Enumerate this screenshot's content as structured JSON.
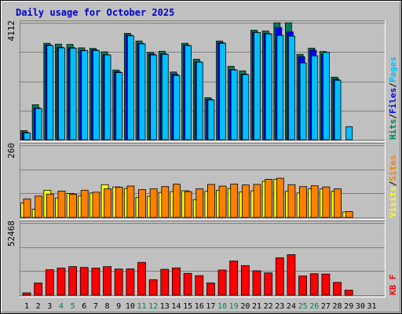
{
  "chart_data": {
    "title": "Daily usage for October 2025",
    "type": "bar",
    "days": [
      "1",
      "2",
      "3",
      "4",
      "5",
      "6",
      "7",
      "8",
      "9",
      "10",
      "11",
      "12",
      "13",
      "14",
      "15",
      "16",
      "17",
      "18",
      "19",
      "20",
      "21",
      "22",
      "23",
      "24",
      "25",
      "26",
      "27",
      "28",
      "29",
      "30",
      "31"
    ],
    "weekend_days": [
      "4",
      "5",
      "11",
      "12",
      "18",
      "19",
      "25",
      "26"
    ],
    "colors": {
      "hits": "#00805c",
      "files": "#0000ff",
      "pages": "#00c0ff",
      "visits": "#ffff00",
      "sites": "#ff8000",
      "kbytes": "#ff0000",
      "title": "#0000c8",
      "weekend": "#00805c",
      "weekday": "#000000",
      "panel_bg": "#c0c0c0",
      "grid": "#808080"
    },
    "panels": [
      {
        "id": "hits-files-pages",
        "ymax_label": "4112",
        "ymax": 4112,
        "side_label": [
          {
            "text": "Hits",
            "color": "#00805c"
          },
          {
            "text": "/",
            "color": "#000000"
          },
          {
            "text": "Files",
            "color": "#0000ff"
          },
          {
            "text": "/",
            "color": "#000000"
          },
          {
            "text": "Pages",
            "color": "#00c0ff"
          }
        ],
        "series": [
          {
            "name": "Hits",
            "color": "#00805c",
            "values": [
              320,
              1230,
              3390,
              3360,
              3350,
              3230,
              3210,
              3090,
              2450,
              3740,
              3470,
              3070,
              3110,
              2380,
              3390,
              2830,
              1480,
              3470,
              2580,
              2420,
              3850,
              3820,
              4110,
              4110,
              3000,
              3220,
              3100,
              2200,
              0,
              0,
              0
            ]
          },
          {
            "name": "Files",
            "color": "#0000ff",
            "values": [
              260,
              1120,
              3330,
              3250,
              3240,
              3140,
              3160,
              2990,
              2390,
              3680,
              3390,
              3010,
              3020,
              2300,
              3320,
              2740,
              1420,
              3410,
              2470,
              2310,
              3780,
              3740,
              3940,
              3790,
              2920,
              3150,
              3000,
              2130,
              0,
              0,
              0
            ]
          },
          {
            "name": "Pages",
            "color": "#00c0ff",
            "values": [
              240,
              1100,
              3310,
              3230,
              3220,
              3130,
              3140,
              2980,
              2360,
              3650,
              3370,
              2980,
              3000,
              2260,
              3310,
              2730,
              1400,
              3390,
              2450,
              2290,
              3770,
              3720,
              3670,
              3640,
              2700,
              2950,
              3070,
              2090,
              460,
              0,
              0
            ]
          }
        ]
      },
      {
        "id": "visits-sites",
        "ymax_label": "260",
        "ymax": 260,
        "side_label": [
          {
            "text": "Visits",
            "color": "#ffff00"
          },
          {
            "text": "/",
            "color": "#000000"
          },
          {
            "text": "Sites",
            "color": "#ff8000"
          }
        ],
        "series": [
          {
            "name": "Visits",
            "color": "#ffff00",
            "values": [
              52,
              30,
              98,
              70,
              86,
              78,
              88,
              118,
              110,
              104,
              72,
              76,
              90,
              93,
              96,
              64,
              94,
              98,
              104,
              92,
              96,
              130,
              137,
              94,
              88,
              104,
              103,
              94,
              20,
              0,
              0
            ]
          },
          {
            "name": "Sites",
            "color": "#ff8000",
            "values": [
              67,
              77,
              84,
              95,
              84,
              98,
              91,
              103,
              109,
              113,
              100,
              103,
              111,
              120,
              93,
              103,
              119,
              113,
              120,
              117,
              119,
              137,
              141,
              118,
              111,
              114,
              110,
              103,
              21,
              0,
              0
            ]
          }
        ]
      },
      {
        "id": "kbytes",
        "ymax_label": "52468",
        "ymax": 52468,
        "side_label": [
          {
            "text": "KB F",
            "color": "#ff0000"
          }
        ],
        "series": [
          {
            "name": "KBytes",
            "color": "#ff0000",
            "values": [
              1680,
              8790,
              18480,
              19720,
              20760,
              20140,
              19660,
              20720,
              18970,
              19080,
              23830,
              11240,
              18760,
              19800,
              15830,
              14180,
              8900,
              18270,
              24830,
              21500,
              17720,
              16170,
              27200,
              29450,
              13910,
              15560,
              15340,
              9270,
              3610,
              0,
              0
            ]
          }
        ]
      }
    ]
  }
}
